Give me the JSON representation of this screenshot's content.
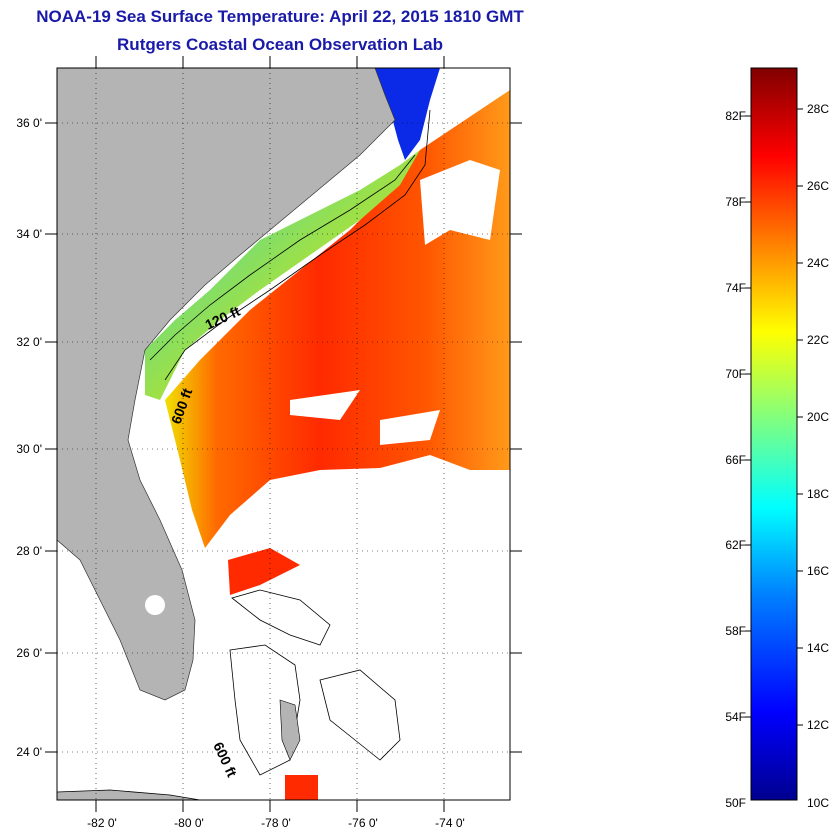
{
  "header": {
    "title": "NOAA-19 Sea Surface Temperature:  April 22, 2015 1810 GMT",
    "subtitle": "Rutgers Coastal Ocean Observation Lab"
  },
  "map": {
    "lon_range": [
      -83.0,
      -72.5
    ],
    "lat_range": [
      23.0,
      37.0
    ],
    "lon_ticks": [
      {
        "value": -82,
        "label": "-82 0'"
      },
      {
        "value": -80,
        "label": "-80 0'"
      },
      {
        "value": -78,
        "label": "-78 0'"
      },
      {
        "value": -76,
        "label": "-76 0'"
      },
      {
        "value": -74,
        "label": "-74 0'"
      }
    ],
    "lat_ticks": [
      {
        "value": 36,
        "label": "36 0'"
      },
      {
        "value": 34,
        "label": "34 0'"
      },
      {
        "value": 32,
        "label": "32 0'"
      },
      {
        "value": 30,
        "label": "30 0'"
      },
      {
        "value": 28,
        "label": "28 0'"
      },
      {
        "value": 26,
        "label": "26 0'"
      },
      {
        "value": 24,
        "label": "24 0'"
      }
    ],
    "contour_labels": [
      {
        "text": "120 ft"
      },
      {
        "text": "600 ft"
      },
      {
        "text": "600 ft"
      }
    ],
    "land_color": "#b4b4b4",
    "grid": true
  },
  "colorbar": {
    "celsius_range": [
      10,
      29
    ],
    "fahrenheit_labels": [
      "82F",
      "78F",
      "74F",
      "70F",
      "66F",
      "62F",
      "58F",
      "54F",
      "50F"
    ],
    "celsius_labels": [
      "28C",
      "26C",
      "24C",
      "22C",
      "20C",
      "18C",
      "16C",
      "14C",
      "12C",
      "10C"
    ],
    "colormap": [
      "#00008f",
      "#0000ff",
      "#0080ff",
      "#00ffff",
      "#80ff80",
      "#ffff00",
      "#ff8000",
      "#ff0000",
      "#800000"
    ]
  }
}
